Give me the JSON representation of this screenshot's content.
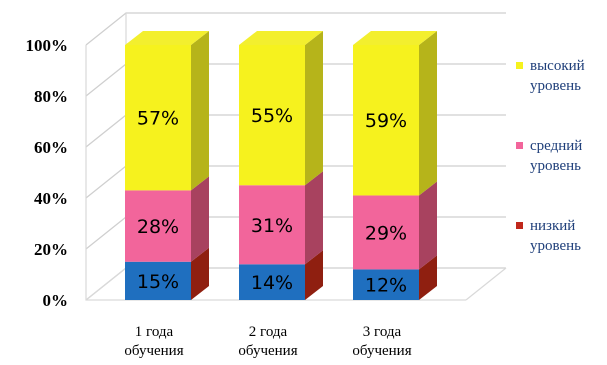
{
  "chart_data": {
    "type": "bar",
    "stacked": true,
    "three_d": true,
    "categories": [
      "1 года обучения",
      "2 года обучения",
      "3 года обучения"
    ],
    "category_lines": [
      [
        "1 года",
        "обучения"
      ],
      [
        "2 года",
        "обучения"
      ],
      [
        "3 года",
        "обучения"
      ]
    ],
    "series": [
      {
        "name": "низкий уровень",
        "name_lines": [
          "низкий",
          "уровень"
        ],
        "values": [
          15,
          14,
          12
        ],
        "labels": [
          "15%",
          "14%",
          "12%"
        ],
        "color": "#1f6fbf",
        "legend_color": "#c0281b",
        "top_color": "#3b8ad6",
        "side_color": "#8f1f10"
      },
      {
        "name": "средний уровень",
        "name_lines": [
          "средний",
          "уровень"
        ],
        "values": [
          28,
          31,
          29
        ],
        "labels": [
          "28%",
          "31%",
          "29%"
        ],
        "color": "#f2659b",
        "legend_color": "#f2659b",
        "top_color": "#f58ab3",
        "side_color": "#a8425f"
      },
      {
        "name": "высокий уровень",
        "name_lines": [
          "высокий",
          "уровень"
        ],
        "values": [
          57,
          55,
          59
        ],
        "labels": [
          "57%",
          "55%",
          "59%"
        ],
        "color": "#f6f21e",
        "legend_color": "#f6f21e",
        "top_color": "#f3ef2e",
        "side_color": "#b6b41a"
      }
    ],
    "ylim": [
      0,
      100
    ],
    "yticks": [
      0,
      20,
      40,
      60,
      80,
      100
    ],
    "ytick_labels": [
      "0%",
      "20%",
      "40%",
      "60%",
      "80%",
      "100%"
    ],
    "grid": true,
    "legend_position": "right"
  }
}
